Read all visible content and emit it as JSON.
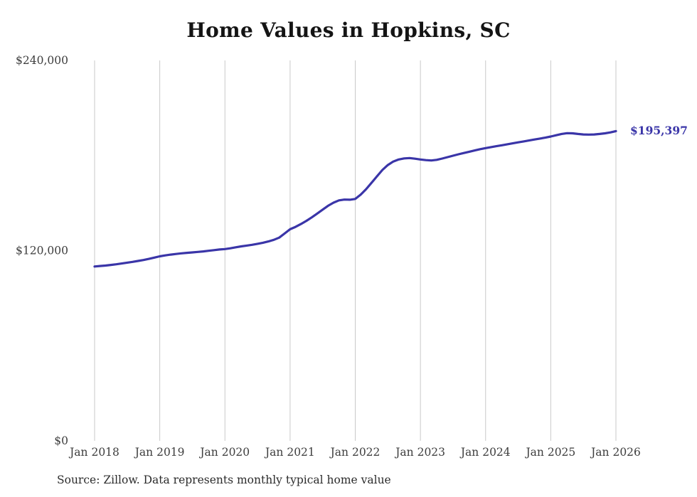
{
  "chart_data": {
    "type": "line",
    "title": "Home Values in Hopkins, SC",
    "xlabel": "",
    "ylabel": "",
    "ylim": [
      0,
      240000
    ],
    "grid": "vertical-only",
    "line_color": "#3a35a8",
    "gridline_color": "#c9c9c9",
    "end_label": "$195,397",
    "end_value": 195397,
    "x_start": "2018-01",
    "x_end": "2026-01",
    "x_tick_labels": [
      "Jan 2018",
      "Jan 2019",
      "Jan 2020",
      "Jan 2021",
      "Jan 2022",
      "Jan 2023",
      "Jan 2024",
      "Jan 2025",
      "Jan 2026"
    ],
    "y_ticks": [
      {
        "value": 0,
        "label": "$0"
      },
      {
        "value": 120000,
        "label": "$120,000"
      },
      {
        "value": 240000,
        "label": "$240,000"
      }
    ],
    "series": [
      {
        "name": "Monthly typical home value",
        "values": [
          110000,
          110300,
          110600,
          111000,
          111400,
          111900,
          112400,
          112900,
          113500,
          114100,
          114800,
          115600,
          116400,
          117000,
          117500,
          117900,
          118300,
          118600,
          118900,
          119200,
          119500,
          119900,
          120300,
          120700,
          121000,
          121500,
          122100,
          122700,
          123200,
          123700,
          124300,
          125000,
          125800,
          126800,
          128200,
          130800,
          133500,
          135000,
          136800,
          138800,
          141000,
          143400,
          145900,
          148300,
          150300,
          151700,
          152200,
          152100,
          152600,
          155300,
          158800,
          162800,
          166900,
          170900,
          174000,
          176200,
          177500,
          178200,
          178400,
          178000,
          177500,
          177100,
          176900,
          177300,
          178100,
          179000,
          179900,
          180800,
          181600,
          182400,
          183200,
          184000,
          184700,
          185300,
          185900,
          186500,
          187100,
          187700,
          188300,
          188900,
          189500,
          190100,
          190700,
          191300,
          192000,
          192800,
          193600,
          194100,
          194000,
          193600,
          193300,
          193200,
          193300,
          193600,
          194000,
          194600,
          195397
        ]
      }
    ]
  },
  "source_note": "Source: Zillow. Data represents monthly typical home value"
}
